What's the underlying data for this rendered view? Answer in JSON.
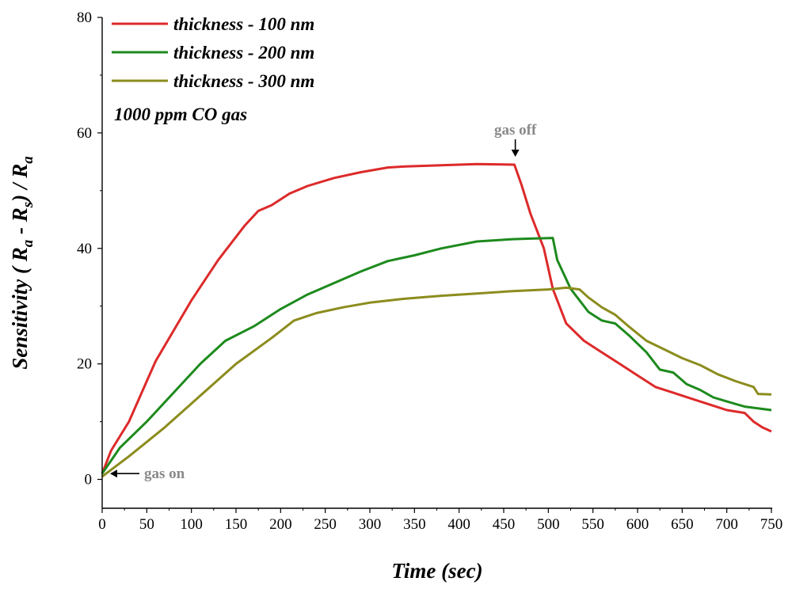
{
  "chart_data": {
    "type": "line",
    "xlabel": "Time (sec)",
    "ylabel": "Sensitivity ( Ra - Rs) / Ra",
    "ylabel_parts": {
      "prefix": "Sensitivity ( ",
      "ra": "R",
      "ra_sub": "a",
      "minus": " - ",
      "rs": "R",
      "rs_sub": "s",
      "mid": ") / ",
      "ra2": "R",
      "ra2_sub": "a"
    },
    "xlim": [
      0,
      750
    ],
    "ylim": [
      -5,
      80
    ],
    "x_ticks": [
      0,
      50,
      100,
      150,
      200,
      250,
      300,
      350,
      400,
      450,
      500,
      550,
      600,
      650,
      700,
      750
    ],
    "y_ticks": [
      0,
      20,
      40,
      60,
      80
    ],
    "legend_position": "top-left",
    "note": "1000 ppm CO gas",
    "annotations": [
      {
        "text": "gas on",
        "x": 10,
        "y": 1
      },
      {
        "text": "gas off",
        "x": 463,
        "y": 56
      }
    ],
    "series": [
      {
        "name": "thickness - 100 nm",
        "color": "#dd2a2a",
        "x": [
          0,
          10,
          30,
          50,
          60,
          100,
          130,
          160,
          175,
          190,
          210,
          230,
          260,
          290,
          320,
          340,
          380,
          420,
          462,
          470,
          480,
          495,
          505,
          520,
          540,
          560,
          580,
          600,
          620,
          640,
          660,
          680,
          700,
          720,
          730,
          740,
          750
        ],
        "y": [
          1,
          5,
          10,
          17,
          20.5,
          31,
          38,
          44,
          46.5,
          47.5,
          49.5,
          50.8,
          52.2,
          53.2,
          54,
          54.2,
          54.4,
          54.6,
          54.5,
          51,
          46,
          40,
          33,
          27,
          24,
          22,
          20,
          18,
          16,
          15,
          14,
          13,
          12,
          11.5,
          10,
          9,
          8.3
        ]
      },
      {
        "name": "thickness - 200 nm",
        "color": "#1d8a1d",
        "x": [
          0,
          20,
          50,
          80,
          110,
          138,
          170,
          200,
          230,
          260,
          290,
          320,
          350,
          380,
          420,
          460,
          480,
          505,
          510,
          525,
          545,
          560,
          575,
          590,
          610,
          625,
          640,
          655,
          670,
          685,
          700,
          720,
          750
        ],
        "y": [
          1,
          5.5,
          10,
          15,
          20,
          24,
          26.5,
          29.5,
          32,
          34,
          36,
          37.8,
          38.8,
          40,
          41.2,
          41.6,
          41.7,
          41.8,
          38,
          33,
          29,
          27.5,
          27,
          25,
          22,
          19,
          18.5,
          16.5,
          15.5,
          14.2,
          13.5,
          12.6,
          12
        ]
      },
      {
        "name": "thickness - 300 nm",
        "color": "#8c8c1e",
        "x": [
          0,
          30,
          70,
          110,
          150,
          190,
          215,
          240,
          270,
          300,
          340,
          380,
          420,
          460,
          500,
          520,
          535,
          545,
          560,
          575,
          590,
          610,
          630,
          650,
          670,
          690,
          710,
          730,
          735,
          750
        ],
        "y": [
          0.5,
          4,
          9,
          14.5,
          20,
          24.5,
          27.5,
          28.8,
          29.8,
          30.6,
          31.3,
          31.8,
          32.2,
          32.6,
          32.9,
          33.2,
          32.9,
          31.5,
          29.8,
          28.5,
          26.5,
          24,
          22.5,
          21,
          19.8,
          18.2,
          17,
          16,
          14.8,
          14.7
        ]
      }
    ]
  }
}
